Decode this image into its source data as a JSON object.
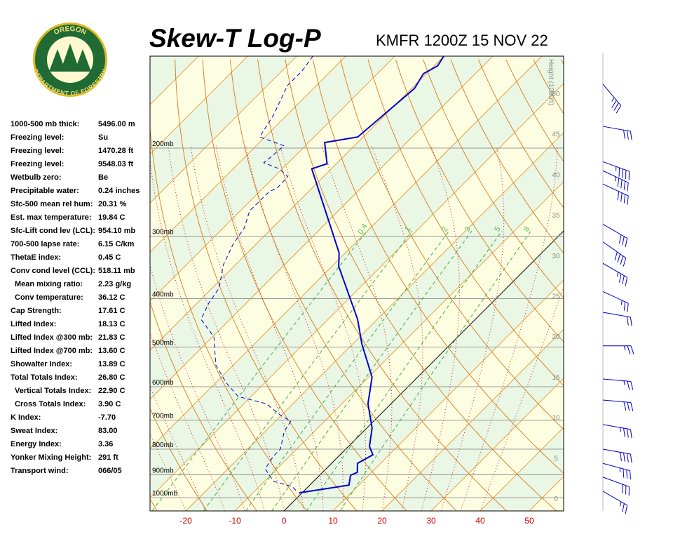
{
  "logo": {
    "top": "OREGON",
    "bottom": "DEPARTMENT OF FORESTRY"
  },
  "header": {
    "title": "Skew-T Log-P",
    "station": "KMFR 1200Z 15 NOV 22"
  },
  "stats": {
    "rows": [
      [
        "1000-500 mb thick:",
        "5496.00 m"
      ],
      [
        "Freezing level:",
        "Su"
      ],
      [
        "Freezing level:",
        "1470.28 ft"
      ],
      [
        "Freezing level:",
        "9548.03 ft"
      ],
      [
        "Wetbulb zero:",
        "Be"
      ],
      [
        "Precipitable water:",
        "0.24 inches"
      ],
      [
        "Sfc-500 mean rel hum:",
        "20.31 %"
      ],
      [
        "Est. max temperature:",
        "19.84 C"
      ],
      [
        "Sfc-Lift cond lev (LCL):",
        "954.10 mb"
      ],
      [
        "700-500 lapse rate:",
        "6.15 C/km"
      ],
      [
        "ThetaE index:",
        "0.45 C"
      ],
      [
        "Conv cond level (CCL):",
        "518.11 mb"
      ],
      [
        "Mean mixing ratio:",
        "2.23 g/kg"
      ],
      [
        "Conv temperature:",
        "36.12 C"
      ],
      [
        "Cap Strength:",
        "17.61 C"
      ],
      [
        "Lifted Index:",
        "18.13 C"
      ],
      [
        "Lifted Index @300 mb:",
        "21.83 C"
      ],
      [
        "Lifted Index @700 mb:",
        "13.60 C"
      ],
      [
        "Showalter Index:",
        "13.89 C"
      ],
      [
        "Total Totals Index:",
        "26.80 C"
      ],
      [
        "Vertical Totals Index:",
        "22.90 C"
      ],
      [
        "Cross Totals Index:",
        "3.90 C"
      ],
      [
        "K Index:",
        "-7.70"
      ],
      [
        "Sweat Index:",
        "83.00"
      ],
      [
        "Energy Index:",
        "3.36"
      ],
      [
        "Yonker Mixing Height:",
        "291 ft"
      ],
      [
        "Transport wind:",
        "066/05"
      ]
    ]
  },
  "chart_data": {
    "type": "skew-t",
    "xlim": [
      -27.3,
      57
    ],
    "ylim": [
      1063,
      131
    ],
    "xticks": [
      -20,
      -10,
      0,
      10,
      20,
      30,
      40,
      50
    ],
    "yticks": [
      {
        "value": 200,
        "label": "200mb"
      },
      {
        "value": 300,
        "label": "300mb"
      },
      {
        "value": 400,
        "label": "400mb"
      },
      {
        "value": 500,
        "label": "500mb"
      },
      {
        "value": 600,
        "label": "600mb"
      },
      {
        "value": 700,
        "label": "700mb"
      },
      {
        "value": 800,
        "label": "800mb"
      },
      {
        "value": 900,
        "label": "900mb"
      },
      {
        "value": 1000,
        "label": "1000mb"
      }
    ],
    "height_label": "Height (1000ft)",
    "height_ticks": [
      0,
      5,
      10,
      15,
      20,
      25,
      30,
      35,
      40,
      45,
      50
    ],
    "mixing_ratios": [
      0.4,
      1,
      2,
      3,
      5,
      8
    ],
    "temperature": {
      "color": "#0000cc",
      "pressure": [
        131,
        137,
        142,
        152,
        190,
        195,
        215,
        220,
        324,
        345,
        440,
        493,
        574,
        649,
        726,
        790,
        821,
        854,
        890,
        902,
        944,
        978
      ],
      "values": [
        -60,
        -59.3,
        -60.6,
        -59.4,
        -61.1,
        -66.7,
        -61.9,
        -64,
        -41.3,
        -38.6,
        -24,
        -18.1,
        -9.3,
        -4.7,
        1.1,
        4.3,
        6.7,
        5.3,
        7.1,
        6.3,
        8,
        -0.6
      ]
    },
    "dewpoint": {
      "color": "#0000cc",
      "pressure": [
        131,
        140,
        150,
        172,
        190,
        198,
        205,
        214,
        220,
        228,
        241,
        244,
        267,
        289,
        311,
        343,
        381,
        409,
        440,
        477,
        543,
        589,
        628,
        649,
        685,
        703,
        738,
        800,
        826,
        876,
        928,
        950,
        971
      ],
      "values": [
        -86.7,
        -85.9,
        -85.9,
        -82.7,
        -81.1,
        -74.3,
        -74.6,
        -75,
        -70.6,
        -67.3,
        -67.1,
        -68,
        -68.1,
        -65.7,
        -64.7,
        -62.4,
        -58.6,
        -57.6,
        -55.9,
        -49.7,
        -43.6,
        -37.9,
        -32.6,
        -25.4,
        -20.1,
        -16.9,
        -16.1,
        -13.3,
        -13.3,
        -12.4,
        -8.1,
        -3.3,
        -1.4
      ]
    },
    "winds": {
      "pressure": [
        149,
        181,
        213,
        222,
        236,
        284,
        308,
        340,
        387,
        426,
        497,
        579,
        638,
        714,
        800,
        854,
        910,
        971
      ],
      "direction": [
        140,
        100,
        110,
        115,
        115,
        120,
        125,
        120,
        115,
        100,
        90,
        95,
        95,
        100,
        100,
        105,
        110,
        120
      ],
      "speed": [
        35,
        30,
        45,
        45,
        40,
        30,
        40,
        35,
        25,
        20,
        25,
        25,
        30,
        35,
        40,
        35,
        30,
        25
      ]
    }
  }
}
